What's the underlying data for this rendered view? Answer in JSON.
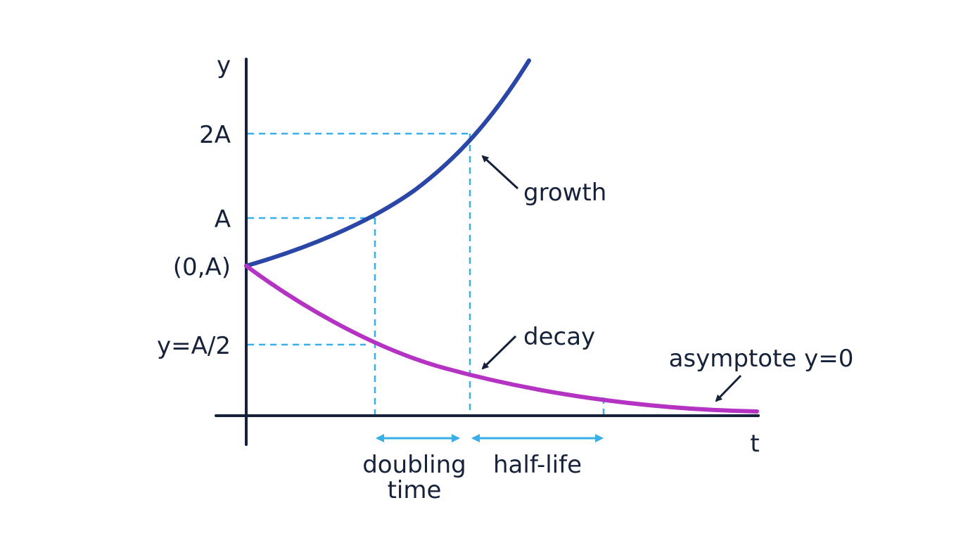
{
  "diagram": {
    "labels": {
      "y_axis": "y",
      "t_axis": "t",
      "tick_2a": "2A",
      "tick_a": "A",
      "tick_origin": "(0,A)",
      "tick_half": "y=A/2",
      "growth": "growth",
      "decay": "decay",
      "asymptote": "asymptote y=0",
      "doubling_line1": "doubling",
      "doubling_line2": "time",
      "half_life": "half-life"
    },
    "colors": {
      "axis": "#16213a",
      "growth": "#2a46a6",
      "decay": "#b533c2",
      "guide": "#3aaee6",
      "text": "#16213a"
    }
  }
}
